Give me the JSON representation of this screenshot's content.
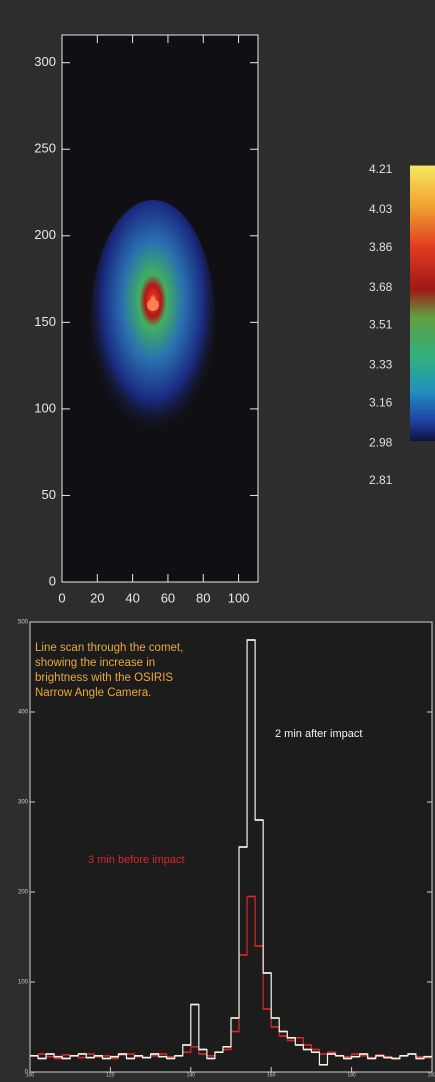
{
  "chart_data": [
    {
      "type": "image",
      "xlim": [
        0,
        111
      ],
      "ylim": [
        0,
        316
      ],
      "xticks": [
        0,
        20,
        40,
        60,
        80,
        100
      ],
      "yticks": [
        0,
        50,
        100,
        150,
        200,
        250,
        300
      ],
      "colorbar": {
        "lim": [
          2.99,
          4.23
        ],
        "ticks": [
          4.21,
          4.03,
          3.86,
          3.68,
          3.51,
          3.33,
          3.16,
          2.98,
          2.81
        ]
      }
    },
    {
      "type": "step",
      "xlim": [
        100,
        200
      ],
      "ylim": [
        0,
        500
      ],
      "xticks": [
        100,
        120,
        140,
        160,
        180,
        200
      ],
      "yticks": [
        0,
        100,
        200,
        300,
        400,
        500
      ],
      "annotation": [
        "Line scan through the comet,",
        "showing the increase in",
        "brightness with the OSIRIS",
        "Narrow Angle Camera."
      ],
      "x": [
        100,
        102,
        104,
        106,
        108,
        110,
        112,
        114,
        116,
        118,
        120,
        122,
        124,
        126,
        128,
        130,
        132,
        134,
        136,
        138,
        140,
        142,
        144,
        146,
        148,
        150,
        152,
        154,
        156,
        158,
        160,
        162,
        164,
        166,
        168,
        170,
        172,
        174,
        176,
        178,
        180,
        182,
        184,
        186,
        188,
        190,
        192,
        194,
        196,
        198
      ],
      "series": [
        {
          "name": "2 min after impact",
          "color": "#f4f4ea",
          "values": [
            18,
            15,
            20,
            17,
            15,
            18,
            20,
            16,
            18,
            15,
            17,
            20,
            15,
            18,
            16,
            20,
            17,
            15,
            18,
            30,
            75,
            25,
            15,
            22,
            28,
            60,
            250,
            480,
            280,
            110,
            60,
            45,
            38,
            30,
            25,
            22,
            8,
            20,
            18,
            15,
            17,
            20,
            15,
            18,
            16,
            15,
            18,
            20,
            15,
            17
          ]
        },
        {
          "name": "3 min before impact",
          "color": "#d8262a",
          "values": [
            18,
            20,
            17,
            15,
            19,
            18,
            16,
            20,
            17,
            18,
            15,
            19,
            20,
            17,
            16,
            18,
            20,
            17,
            18,
            22,
            28,
            20,
            18,
            22,
            25,
            45,
            130,
            195,
            140,
            70,
            50,
            40,
            35,
            38,
            30,
            25,
            20,
            22,
            18,
            17,
            20,
            18,
            16,
            19,
            17,
            15,
            18,
            20,
            17,
            16
          ]
        }
      ]
    }
  ]
}
